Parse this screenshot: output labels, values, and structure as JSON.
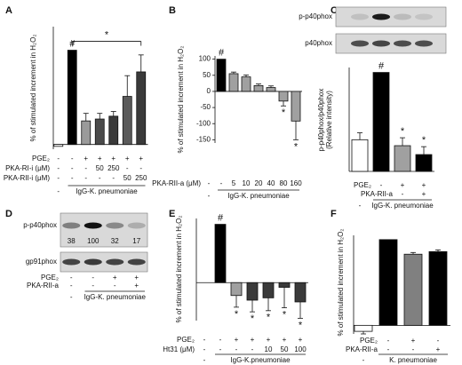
{
  "chart_data": [
    {
      "type": "bar",
      "label": "A",
      "ylabel": "% of stimulated increment in H₂O₂",
      "ylim": [
        -5,
        125
      ],
      "values": [
        -2,
        100,
        25,
        27,
        30,
        51,
        77
      ],
      "errors": [
        null,
        null,
        8,
        6,
        5,
        22,
        18
      ],
      "colors": [
        "#ffffff",
        "#000000",
        "#9a9a9a",
        "#4a4a4a",
        "#3a3a3a",
        "#5a5a5a",
        "#3a3a3a"
      ],
      "annotations": [
        null,
        "#",
        null,
        null,
        null,
        null,
        null
      ],
      "bracket": {
        "label": "*",
        "from": 1,
        "to": 6
      },
      "rows": [
        {
          "name": "PGE₂",
          "values": [
            "-",
            "-",
            "+",
            "+",
            "+",
            "+",
            "+"
          ]
        },
        {
          "name": "PKA-RI-i (μM)",
          "values": [
            "-",
            "-",
            "-",
            50,
            250,
            "-",
            "-"
          ]
        },
        {
          "name": "PKA-RII-i (μM)",
          "values": [
            "-",
            "-",
            "-",
            "-",
            "-",
            50,
            250
          ]
        }
      ],
      "groups": [
        {
          "label": "-",
          "span": 1
        },
        {
          "label": "IgG-K. pneumoniae",
          "span": 6
        }
      ]
    },
    {
      "type": "bar",
      "label": "B",
      "ylabel": "% of stimulated increment in H₂O₂",
      "ylim": [
        -160,
        110
      ],
      "yticks": [
        100,
        50,
        0,
        -50,
        -100,
        -150
      ],
      "values": [
        0,
        100,
        55,
        45,
        18,
        12,
        -30,
        -92
      ],
      "errors": [
        null,
        null,
        5,
        6,
        5,
        5,
        15,
        58
      ],
      "colors": [
        "#ffffff",
        "#000000",
        "#a0a0a0",
        "#a0a0a0",
        "#a0a0a0",
        "#a0a0a0",
        "#a0a0a0",
        "#a0a0a0"
      ],
      "annotations": [
        null,
        "#",
        null,
        null,
        null,
        null,
        "*",
        "*"
      ],
      "rows": [
        {
          "name": "PKA-RII-a (μM)",
          "values": [
            "-",
            "-",
            5,
            10,
            20,
            40,
            80,
            160
          ]
        }
      ],
      "groups": [
        {
          "label": "-",
          "span": 1
        },
        {
          "label": "IgG-K. pneumoniae",
          "span": 7
        }
      ]
    },
    {
      "type": "bar",
      "label": "C",
      "ylabel": [
        "p-p40phox/p40phox",
        "(Relative intensity)"
      ],
      "ylim": [
        0,
        105
      ],
      "blot_rows": [
        "p-p40phox",
        "p40phox"
      ],
      "values": [
        32,
        100,
        26,
        17
      ],
      "errors": [
        7,
        null,
        8,
        8
      ],
      "colors": [
        "#ffffff",
        "#000000",
        "#a0a0a0",
        "#000000"
      ],
      "annotations": [
        null,
        "#",
        "*",
        "*"
      ],
      "rows": [
        {
          "name": "PGE₂",
          "values": [
            null,
            "-",
            "+",
            "+"
          ]
        },
        {
          "name": "PKA-RII-a",
          "values": [
            null,
            null,
            "-",
            "+"
          ]
        }
      ],
      "groups": [
        {
          "label": "-",
          "span": 1
        },
        {
          "label": "IgG-K. pneumoniae",
          "span": 3
        }
      ]
    },
    {
      "type": "bar",
      "label": "E",
      "ylabel": "% of stimulated increment in H₂O₂",
      "ylim": [
        -65,
        110
      ],
      "values": [
        0,
        100,
        -22,
        -30,
        -26,
        -8,
        -33
      ],
      "errors": [
        null,
        null,
        20,
        20,
        22,
        35,
        28
      ],
      "colors": [
        "#ffffff",
        "#000000",
        "#a0a0a0",
        "#3a3a3a",
        "#3a3a3a",
        "#3a3a3a",
        "#3a3a3a"
      ],
      "annotations": [
        null,
        "#",
        "*",
        "*",
        "*",
        "*",
        "*"
      ],
      "rows": [
        {
          "name": "PGE₂",
          "values": [
            "-",
            "-",
            "+",
            "+",
            "+",
            "+",
            "+"
          ]
        },
        {
          "name": "Ht31 (μM)",
          "values": [
            "-",
            "-",
            "-",
            "-",
            10,
            50,
            100
          ]
        }
      ],
      "groups": [
        {
          "label": "-",
          "span": 1
        },
        {
          "label": "IgG-K.pneumoniae",
          "span": 6
        }
      ]
    },
    {
      "type": "bar",
      "label": "F",
      "ylabel": "% of stimulated increment in H₂O₂",
      "ylim": [
        -10,
        105
      ],
      "values": [
        -7,
        100,
        83,
        86
      ],
      "errors": [
        3,
        null,
        2,
        2
      ],
      "colors": [
        "#ffffff",
        "#000000",
        "#808080",
        "#000000"
      ],
      "rows": [
        {
          "name": "PGE₂",
          "values": [
            null,
            "-",
            "+",
            "-"
          ]
        },
        {
          "name": "PKA-RII-a",
          "values": [
            null,
            "-",
            "-",
            "+"
          ]
        }
      ],
      "groups": [
        {
          "label": "-",
          "span": 1
        },
        {
          "label": "K. pneumoniae",
          "span": 3
        }
      ]
    }
  ],
  "blots": [
    {
      "label": "D",
      "rows": [
        "p-p40phox",
        "gp91phox"
      ],
      "values": [
        38,
        100,
        32,
        17
      ],
      "conditions": [
        {
          "name": "PGE₂",
          "values": [
            "-",
            "-",
            "+",
            "+"
          ]
        },
        {
          "name": "PKA-RII-a",
          "values": [
            "-",
            "-",
            "-",
            "+"
          ]
        }
      ],
      "groups": [
        {
          "label": "-",
          "span": 1
        },
        {
          "label": "IgG-K. pneumoniae",
          "span": 3
        }
      ]
    }
  ]
}
